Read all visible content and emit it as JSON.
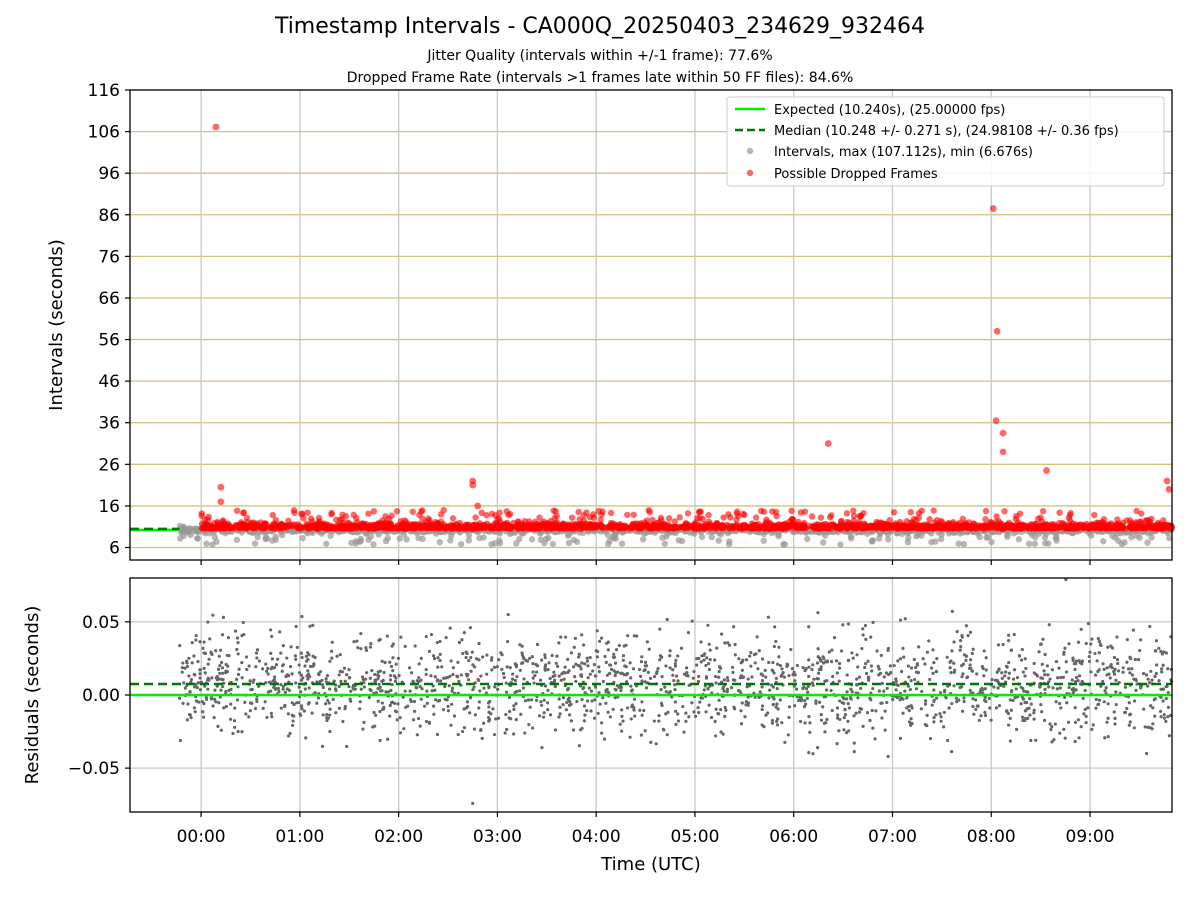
{
  "title": "Timestamp Intervals - CA000Q_20250403_234629_932464",
  "subtitle_1": "Jitter Quality (intervals within +/-1 frame): 77.6%",
  "subtitle_2": "Dropped Frame Rate (intervals >1 frames late within 50 FF files): 84.6%",
  "colors": {
    "expected": "#00ee00",
    "median": "#007700",
    "intervals": "#999999",
    "dropped": "#ff0000",
    "residuals": "#666666",
    "hgrid_top": "#d4c27a",
    "grid": "#c8c8c8"
  },
  "chart_data": [
    {
      "type": "scatter",
      "ylabel": "Intervals (seconds)",
      "xlim_hours": [
        -0.72,
        9.83
      ],
      "ylim": [
        3,
        116
      ],
      "yticks": [
        6,
        16,
        26,
        36,
        46,
        56,
        66,
        76,
        86,
        96,
        106,
        116
      ],
      "xticks_hours": [
        0,
        1,
        2,
        3,
        4,
        5,
        6,
        7,
        8,
        9
      ],
      "grid": true,
      "legend_position": "top-right",
      "legend": [
        "Expected (10.240s), (25.00000 fps)",
        "Median (10.248 +/- 0.271 s), (24.98108 +/- 0.36 fps)",
        "Intervals, max (107.112s), min (6.676s)",
        "Possible Dropped Frames"
      ],
      "expected_interval": 10.24,
      "median_interval": 10.248,
      "data_start_hours": -0.22,
      "data_end_hours": 9.83,
      "notable_dropped_points": [
        {
          "x": 0.15,
          "y": 107.1
        },
        {
          "x": 0.2,
          "y": 20.5
        },
        {
          "x": 0.2,
          "y": 17.0
        },
        {
          "x": 2.75,
          "y": 22.0
        },
        {
          "x": 2.75,
          "y": 21.0
        },
        {
          "x": 2.8,
          "y": 16.0
        },
        {
          "x": 6.35,
          "y": 31.0
        },
        {
          "x": 8.02,
          "y": 87.5
        },
        {
          "x": 8.06,
          "y": 58.0
        },
        {
          "x": 8.05,
          "y": 36.5
        },
        {
          "x": 8.12,
          "y": 33.5
        },
        {
          "x": 8.12,
          "y": 29.0
        },
        {
          "x": 8.56,
          "y": 24.5
        },
        {
          "x": 9.78,
          "y": 22.0
        },
        {
          "x": 9.8,
          "y": 20.0
        }
      ]
    },
    {
      "type": "scatter",
      "xlabel": "Time (UTC)",
      "ylabel": "Residuals (seconds)",
      "xlim_hours": [
        -0.72,
        9.83
      ],
      "ylim": [
        -0.08,
        0.08
      ],
      "yticks": [
        -0.05,
        0.0,
        0.05
      ],
      "ytick_labels": [
        "−0.05",
        "0.00",
        "0.05"
      ],
      "xticks_hours": [
        0,
        1,
        2,
        3,
        4,
        5,
        6,
        7,
        8,
        9
      ],
      "xtick_labels": [
        "00:00",
        "01:00",
        "02:00",
        "03:00",
        "04:00",
        "05:00",
        "06:00",
        "07:00",
        "08:00",
        "09:00"
      ],
      "grid": true,
      "expected_residual": 0.0,
      "median_residual": 0.0075
    }
  ]
}
